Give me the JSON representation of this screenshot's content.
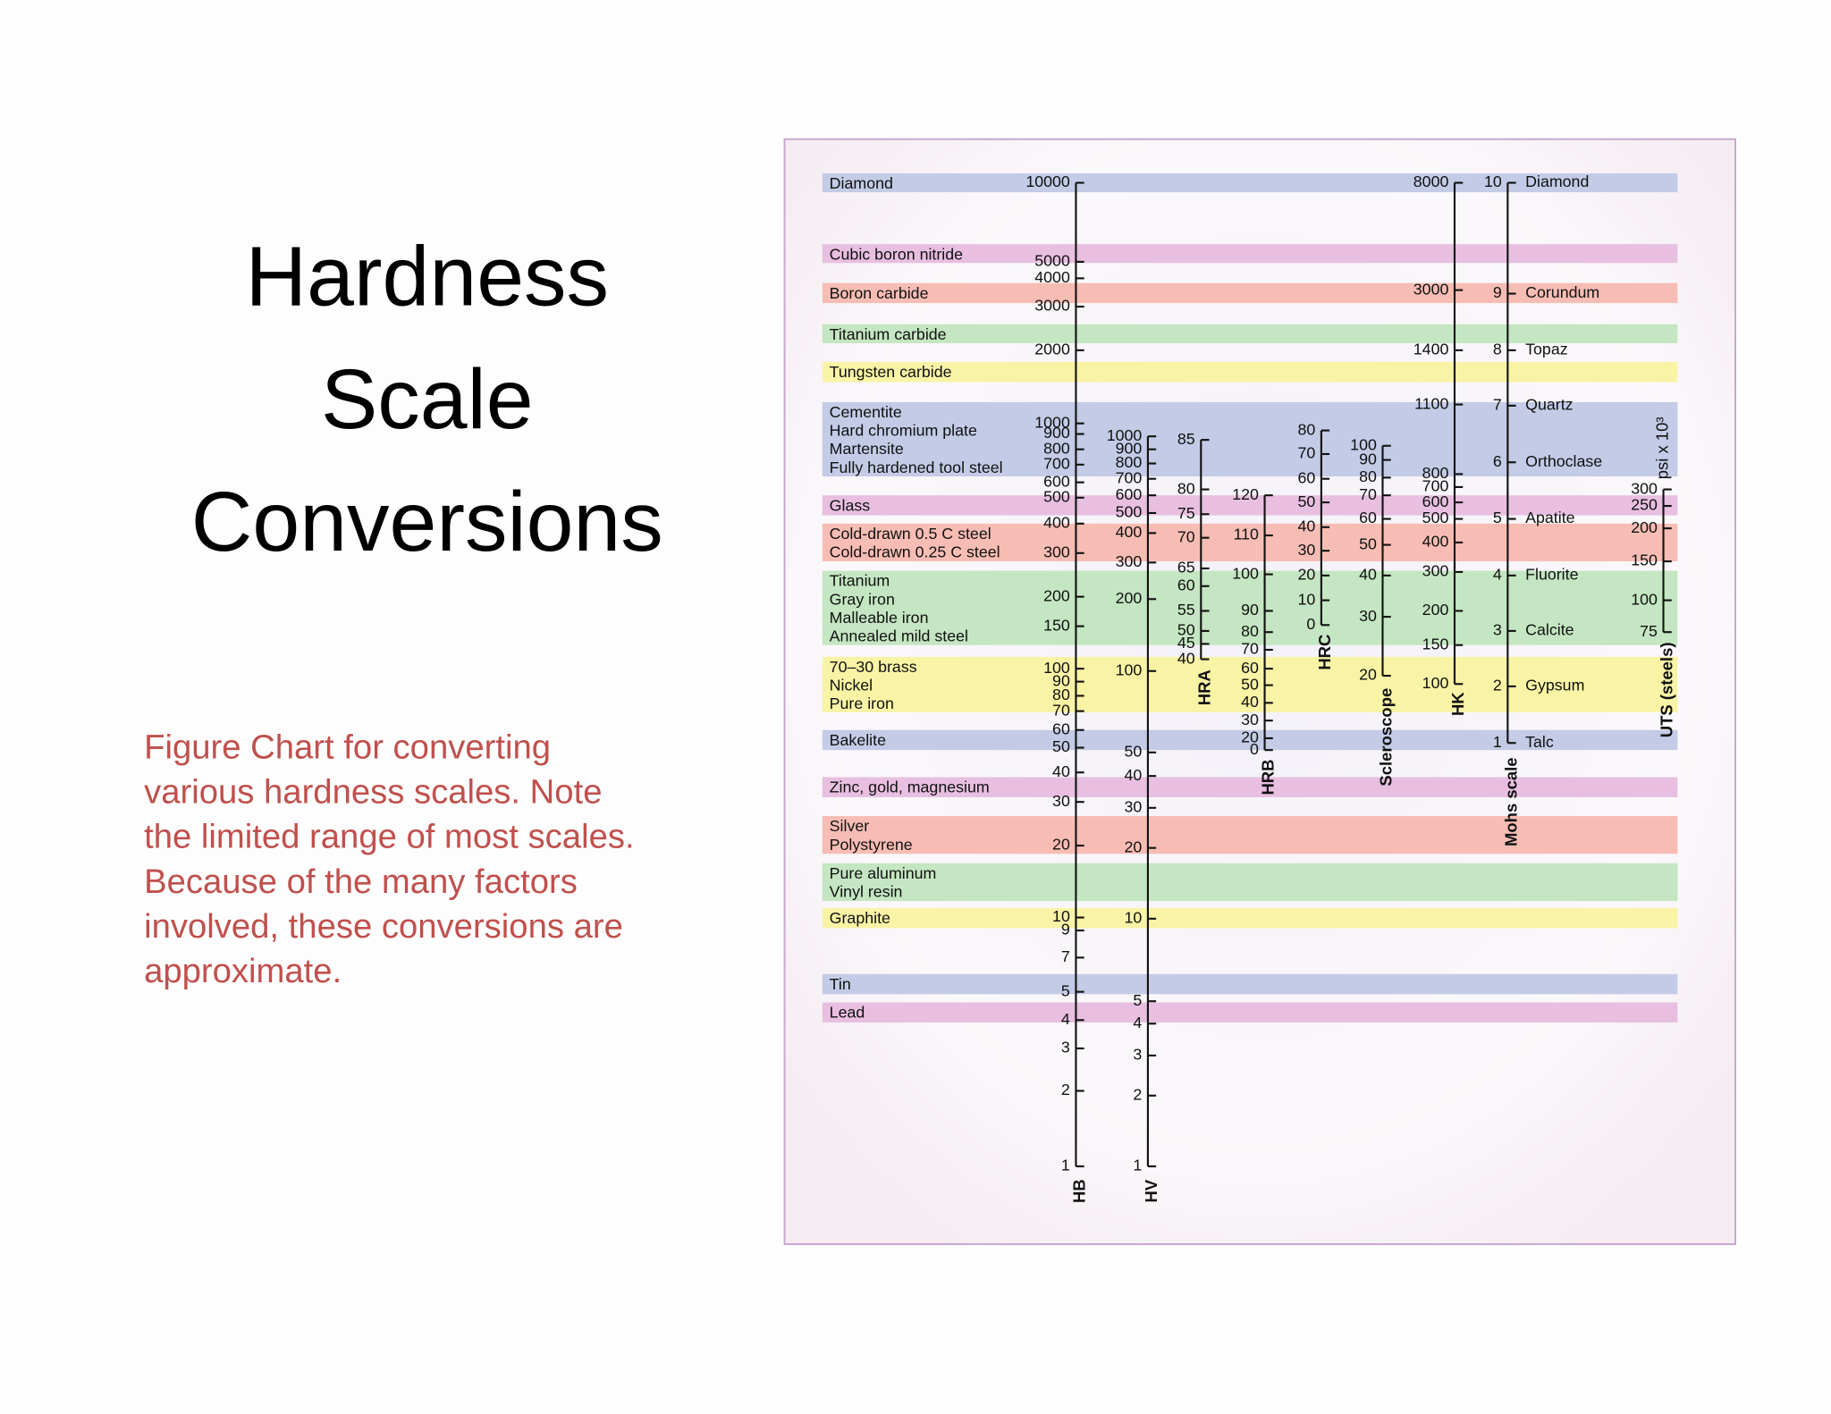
{
  "title": [
    "Hardness",
    "Scale",
    "Conversions"
  ],
  "caption": [
    "Figure Chart for converting",
    "various hardness scales.  Note",
    "the limited range of most scales.",
    "Because of the many factors",
    "involved, these conversions are",
    "approximate."
  ],
  "figure": {
    "materials": [
      [
        "Diamond"
      ],
      [
        "Cubic boron nitride"
      ],
      [
        "Boron carbide"
      ],
      [
        "Titanium carbide"
      ],
      [
        "Tungsten carbide"
      ],
      [
        "Cementite",
        "Hard chromium plate",
        "Martensite",
        "Fully hardened tool steel"
      ],
      [
        "Glass"
      ],
      [
        "Cold-drawn 0.5 C steel",
        "Cold-drawn 0.25 C steel"
      ],
      [
        "Titanium",
        "Gray iron",
        "Malleable iron",
        "Annealed mild steel"
      ],
      [
        "70–30 brass",
        "Nickel",
        "Pure iron"
      ],
      [
        "Bakelite"
      ],
      [
        "Zinc, gold, magnesium"
      ],
      [
        "Silver",
        "Polystyrene"
      ],
      [
        "Pure aluminum",
        "Vinyl resin"
      ],
      [
        "Graphite"
      ],
      [
        "Tin"
      ],
      [
        "Lead"
      ]
    ],
    "scales": [
      {
        "name": "HB",
        "ticks": [
          10000,
          5000,
          4000,
          3000,
          2000,
          1000,
          900,
          800,
          700,
          600,
          500,
          400,
          300,
          200,
          150,
          100,
          90,
          80,
          70,
          60,
          50,
          40,
          30,
          20,
          10,
          9,
          7,
          5,
          4,
          3,
          2,
          1
        ]
      },
      {
        "name": "HV",
        "ticks": [
          1000,
          900,
          800,
          700,
          600,
          500,
          400,
          300,
          200,
          100,
          50,
          40,
          30,
          20,
          10,
          5,
          4,
          3,
          2,
          1
        ]
      },
      {
        "name": "HRA",
        "ticks": [
          85,
          80,
          75,
          70,
          65,
          60,
          55,
          50,
          45,
          40
        ]
      },
      {
        "name": "HRB",
        "ticks": [
          120,
          110,
          100,
          90,
          80,
          70,
          60,
          50,
          40,
          30,
          20,
          0
        ]
      },
      {
        "name": "HRC",
        "ticks": [
          80,
          70,
          60,
          50,
          40,
          30,
          20,
          10,
          0
        ]
      },
      {
        "name": "Scleroscope",
        "ticks": [
          100,
          90,
          80,
          70,
          60,
          50,
          40,
          30,
          20
        ]
      },
      {
        "name": "HK",
        "ticks": [
          8000,
          3000,
          1400,
          1100,
          800,
          700,
          600,
          500,
          400,
          300,
          200,
          150,
          100
        ]
      },
      {
        "name": "Mohs scale",
        "ticks": [
          10,
          9,
          8,
          7,
          6,
          5,
          4,
          3,
          2,
          1
        ],
        "minerals": [
          "Diamond",
          "Corundum",
          "Topaz",
          "Quartz",
          "Orthoclase",
          "Apatite",
          "Fluorite",
          "Calcite",
          "Gypsum",
          "Talc"
        ]
      },
      {
        "name": "UTS (steels)",
        "unit": "psi x 10³",
        "ticks": [
          300,
          250,
          200,
          150,
          100,
          75
        ]
      }
    ]
  }
}
